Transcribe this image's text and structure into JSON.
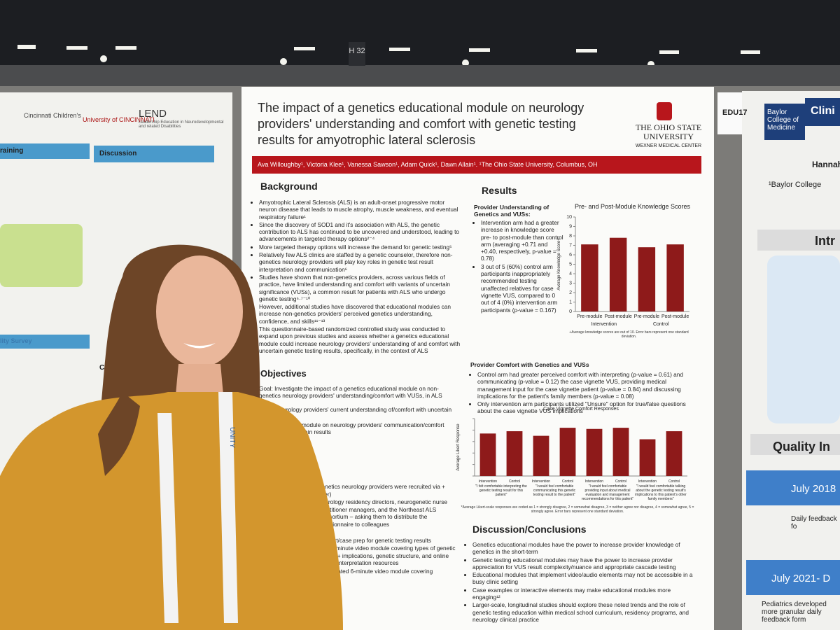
{
  "sign": "H 32",
  "left_poster": {
    "org1": "Cincinnati Children's",
    "org2": "University of CINCINNATI",
    "program": "LEND",
    "program_sub": "Leadership Education in Neurodevelopmental and related Disabilities",
    "h1": "raining",
    "h2": "Discussion",
    "h3": "lity Survey",
    "h4": "Concl"
  },
  "right_poster": {
    "code": "EDU17",
    "school": "Baylor College of Medicine",
    "heading": "Clini",
    "author": "Hannah",
    "affil": "¹Baylor College",
    "intro": "Intr",
    "quality": "Quality In",
    "t1": "July 2018",
    "t1_sub": "Daily feedback fo",
    "t2": "July 2021- D",
    "t2_sub": "Pediatrics developed more granular daily feedback form"
  },
  "poster": {
    "title": "The impact of a genetics educational module on neurology providers' understanding and comfort with genetic testing results for amyotrophic lateral sclerosis",
    "logo": [
      "THE OHIO STATE",
      "UNIVERSITY",
      "WEXNER MEDICAL CENTER"
    ],
    "authors": "Ava Willoughby¹, Victoria Klee¹, Vanessa Sawson¹, Adam Quick¹, Dawn Allain¹. ¹The Ohio State University, Columbus, OH",
    "background": {
      "heading": "Background",
      "items": [
        "Amyotrophic Lateral Sclerosis (ALS) is an adult-onset progressive motor neuron disease that leads to muscle atrophy, muscle weakness, and eventual respiratory failure¹",
        "Since the discovery of SOD1 and it's association with ALS, the genetic contribution to ALS has continued to be uncovered and understood, leading to advancements in targeted therapy options²⁻⁴",
        "More targeted therapy options will increase the demand for genetic testing⁵",
        "Relatively few ALS clinics are staffed by a genetic counselor, therefore non-genetics neurology providers will play key roles in genetic test result interpretation and communication⁶",
        "Studies have shown that non-genetics providers, across various fields of practice, have limited understanding and comfort with variants of uncertain significance (VUSs), a common result for patients with ALS who undergo genetic testing⁵·⁷⁻¹⁰",
        "However, additional studies have discovered that educational modules can increase non-genetics providers' perceived genetics understanding, confidence, and skills¹¹⁻¹³",
        "This questionnaire-based randomized controlled study was conducted to expand upon previous studies and assess whether a genetics educational module could increase neurology providers' understanding of and comfort with uncertain genetic testing results, specifically, in the context of ALS"
      ]
    },
    "objectives": {
      "heading": "Objectives",
      "text": "Goal: Investigate the impact of a genetics educational module on non-genetics neurology providers' understanding/comfort with VUSs, in ALS",
      "items": [
        "neurology providers' current understanding of/comfort with uncertain results",
        "impact of module on neurology providers' communication/comfort with uncertain results"
      ]
    },
    "methods": [
      "genetics neurology providers were recruited via + flyer)",
      "neurology residency directors, neurogenetic nurse practitioner managers, and the Northeast ALS Consortium – asking them to distribute the questionnaire to colleagues",
      "quiz",
      "comfort/case prep for genetic testing results",
      "full 15-minute video module covering types of genetic results + implications, genetic structure, and online variant interpretation resources",
      "abbreviated 6-minute video module covering"
    ],
    "results": {
      "heading": "Results",
      "sub1": "Provider Understanding of Genetics and VUSs:",
      "items1": [
        "Intervention arm had a greater increase in knowledge score pre- to post-module than control arm (averaging +0.71 and +0.40, respectively, p-value = 0.78)",
        "3 out of 5 (60%) control arm participants inappropriately recommended testing unaffected relatives for case vignette VUS, compared to 0 out of 4 (0%) intervention arm participants (p-value = 0.167)"
      ],
      "sub2": "Provider Comfort with Genetics and VUSs",
      "items2": [
        "Control arm had greater perceived comfort with interpreting (p-value = 0.61) and communicating (p-value = 0.12) the case vignette VUS, providing medical management input for the case vignette patient (p-value = 0.84) and discussing implications for the patient's family members (p-value = 0.08)",
        "Only intervention arm participants utilized \"Unsure\" option for true/false questions about the case vignette VUS implications"
      ]
    },
    "discussion": {
      "heading": "Discussion/Conclusions",
      "items": [
        "Genetics educational modules have the power to increase provider knowledge of genetics in the short-term",
        "Genetic testing educational modules may have the power to increase provider appreciation for VUS result complexity/nuance and appropriate cascade testing",
        "Educational modules that implement video/audio elements may not be accessible in a busy clinic setting",
        "Case examples or interactive elements may make educational modules more engaging¹²",
        "Larger-scale, longitudinal studies should explore these noted trends and the role of genetic testing education within medical school curriculum, residency programs, and neurology clinical practice"
      ]
    }
  },
  "lanyard": "UNITY",
  "chart_data": [
    {
      "type": "bar",
      "title": "Pre- and Post-Module Knowledge Scores",
      "y_label": "Average Knowledge Score+",
      "categories": [
        "Pre-module",
        "Post-module",
        "Pre-module",
        "Post-module"
      ],
      "groups": [
        "Intervention",
        "Control"
      ],
      "values": [
        7.1,
        7.8,
        6.8,
        7.1
      ],
      "color": "#8e1a1a",
      "ylim": [
        0,
        10
      ],
      "yticks": [
        0,
        1,
        2,
        3,
        4,
        5,
        6,
        7,
        8,
        9,
        10
      ],
      "note": "+Average knowledge scores are out of 10. Error bars represent one standard deviation."
    },
    {
      "type": "bar",
      "title": "Case Vignette Comfort Responses",
      "y_label": "Average Likert Response",
      "categories": [
        "Intervention",
        "Control",
        "Intervention",
        "Control",
        "Intervention",
        "Control",
        "Intervention",
        "Control"
      ],
      "groups": [
        "\"I felt comfortable interpreting the genetic testing result for this patient\"",
        "\"I would feel comfortable communicating this genetic testing result to the patient\"",
        "\"I would feel comfortable providing input about medical evaluation and management recommendations for this patient\"",
        "\"I would feel comfortable talking about the genetic testing result's implications to this patient's other family members\""
      ],
      "values": [
        3.7,
        3.9,
        3.5,
        4.2,
        4.1,
        4.2,
        3.2,
        3.9
      ],
      "color": "#8e1a1a",
      "ylim": [
        0,
        5
      ],
      "yticks": [
        0,
        1,
        2,
        3,
        4,
        5
      ],
      "note": "*Average Likert-scale responses are coded as 1 = strongly disagree, 2 = somewhat disagree, 3 = neither agree nor disagree, 4 = somewhat agree, 5 = strongly agree. Error bars represent one standard deviation."
    }
  ]
}
